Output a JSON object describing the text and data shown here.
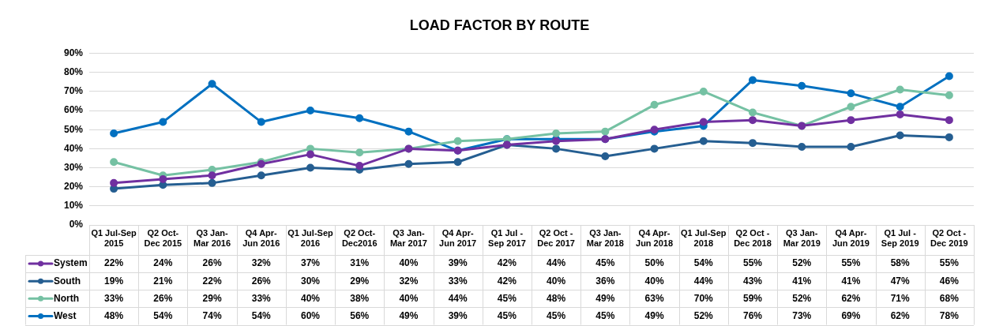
{
  "chart_data": {
    "type": "line",
    "title": "LOAD FACTOR BY ROUTE",
    "categories": [
      "Q1 Jul-Sep 2015",
      "Q2 Oct-Dec 2015",
      "Q3 Jan-Mar 2016",
      "Q4 Apr-Jun 2016",
      "Q1 Jul-Sep 2016",
      "Q2 Oct-Dec2016",
      "Q3 Jan-Mar 2017",
      "Q4 Apr-Jun 2017",
      "Q1 Jul - Sep 2017",
      "Q2 Oct - Dec 2017",
      "Q3 Jan-Mar 2018",
      "Q4 Apr-Jun 2018",
      "Q1 Jul-Sep 2018",
      "Q2 Oct - Dec 2018",
      "Q3 Jan-Mar 2019",
      "Q4 Apr-Jun 2019",
      "Q1 Jul - Sep 2019",
      "Q2 Oct - Dec 2019"
    ],
    "series": [
      {
        "name": "System",
        "color": "#7030a0",
        "values": [
          22,
          24,
          26,
          32,
          37,
          31,
          40,
          39,
          42,
          44,
          45,
          50,
          54,
          55,
          52,
          55,
          58,
          55
        ],
        "value_labels": [
          "22%",
          "24%",
          "26%",
          "32%",
          "37%",
          "31%",
          "40%",
          "39%",
          "42%",
          "44%",
          "45%",
          "50%",
          "54%",
          "55%",
          "52%",
          "55%",
          "58%",
          "55%"
        ]
      },
      {
        "name": "South",
        "color": "#255e91",
        "values": [
          19,
          21,
          22,
          26,
          30,
          29,
          32,
          33,
          42,
          40,
          36,
          40,
          44,
          43,
          41,
          41,
          47,
          46
        ],
        "value_labels": [
          "19%",
          "21%",
          "22%",
          "26%",
          "30%",
          "29%",
          "32%",
          "33%",
          "42%",
          "40%",
          "36%",
          "40%",
          "44%",
          "43%",
          "41%",
          "41%",
          "47%",
          "46%"
        ]
      },
      {
        "name": "North",
        "color": "#75c1a3",
        "values": [
          33,
          26,
          29,
          33,
          40,
          38,
          40,
          44,
          45,
          48,
          49,
          63,
          70,
          59,
          52,
          62,
          71,
          68
        ],
        "value_labels": [
          "33%",
          "26%",
          "29%",
          "33%",
          "40%",
          "38%",
          "40%",
          "44%",
          "45%",
          "48%",
          "49%",
          "63%",
          "70%",
          "59%",
          "52%",
          "62%",
          "71%",
          "68%"
        ]
      },
      {
        "name": "West",
        "color": "#0070c0",
        "values": [
          48,
          54,
          74,
          54,
          60,
          56,
          49,
          39,
          45,
          45,
          45,
          49,
          52,
          76,
          73,
          69,
          62,
          78
        ],
        "value_labels": [
          "48%",
          "54%",
          "74%",
          "54%",
          "60%",
          "56%",
          "49%",
          "39%",
          "45%",
          "45%",
          "45%",
          "49%",
          "52%",
          "76%",
          "73%",
          "69%",
          "62%",
          "78%"
        ]
      }
    ],
    "ylim": [
      0,
      90
    ],
    "yticks": [
      {
        "value": 0,
        "label": "0%"
      },
      {
        "value": 10,
        "label": "10%"
      },
      {
        "value": 20,
        "label": "20%"
      },
      {
        "value": 30,
        "label": "30%"
      },
      {
        "value": 40,
        "label": "40%"
      },
      {
        "value": 50,
        "label": "50%"
      },
      {
        "value": 60,
        "label": "60%"
      },
      {
        "value": 70,
        "label": "70%"
      },
      {
        "value": 80,
        "label": "80%"
      },
      {
        "value": 90,
        "label": "90%"
      }
    ],
    "grid": "y",
    "legend": "bottom",
    "marker": "circle",
    "line_style": "solid"
  }
}
